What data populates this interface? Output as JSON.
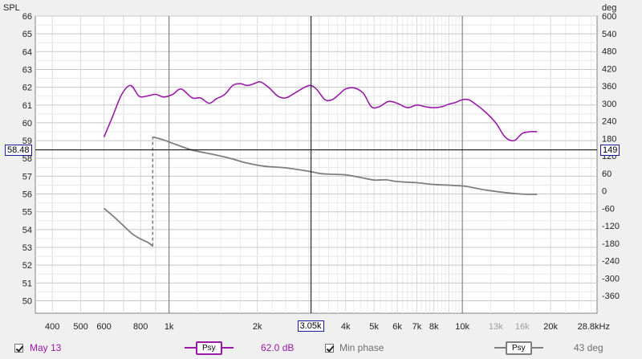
{
  "chart_data": {
    "type": "line",
    "x_scale": "log",
    "xlim_hz": [
      350,
      28800
    ],
    "left_axis": {
      "label": "SPL",
      "ylim": [
        49.3,
        66
      ],
      "ticks": [
        "66",
        "65",
        "64",
        "63",
        "62",
        "61",
        "60",
        "59",
        "58",
        "57",
        "56",
        "55",
        "54",
        "53",
        "52",
        "51",
        "50"
      ]
    },
    "right_axis": {
      "label": "deg",
      "ylim": [
        -420,
        600
      ],
      "ticks": [
        "600",
        "540",
        "480",
        "420",
        "360",
        "300",
        "240",
        "180",
        "120",
        "60",
        "0",
        "-60",
        "-120",
        "-180",
        "-240",
        "-300",
        "-360"
      ]
    },
    "x_ticks": [
      {
        "f": 400,
        "label": "400",
        "color": "#222222"
      },
      {
        "f": 500,
        "label": "500",
        "color": "#222222"
      },
      {
        "f": 600,
        "label": "600",
        "color": "#222222"
      },
      {
        "f": 800,
        "label": "800",
        "color": "#222222"
      },
      {
        "f": 1000,
        "label": "1k",
        "color": "#222222"
      },
      {
        "f": 2000,
        "label": "2k",
        "color": "#222222"
      },
      {
        "f": 4000,
        "label": "4k",
        "color": "#222222"
      },
      {
        "f": 5000,
        "label": "5k",
        "color": "#222222"
      },
      {
        "f": 6000,
        "label": "6k",
        "color": "#222222"
      },
      {
        "f": 7000,
        "label": "7k",
        "color": "#222222"
      },
      {
        "f": 8000,
        "label": "8k",
        "color": "#222222"
      },
      {
        "f": 10000,
        "label": "10k",
        "color": "#222222"
      },
      {
        "f": 13000,
        "label": "13k",
        "color": "#a0a0a0"
      },
      {
        "f": 16000,
        "label": "16k",
        "color": "#a0a0a0"
      },
      {
        "f": 20000,
        "label": "20k",
        "color": "#222222"
      },
      {
        "f": 28800,
        "label": "28.8kHz",
        "color": "#222222"
      }
    ],
    "cursor": {
      "x_hz": 3050,
      "x_label": "3.05k",
      "y_spl": 58.48,
      "y_label": "58.48",
      "y_right_label": "149"
    },
    "series": [
      {
        "name": "May 13",
        "axis": "spl",
        "color": "#9a1aa8",
        "x": [
          600,
          640,
          690,
          740,
          790,
          840,
          900,
          960,
          1030,
          1100,
          1200,
          1280,
          1370,
          1450,
          1550,
          1650,
          1750,
          1850,
          1950,
          2050,
          2200,
          2350,
          2500,
          2700,
          2900,
          3050,
          3200,
          3400,
          3600,
          3800,
          4000,
          4300,
          4600,
          4900,
          5200,
          5600,
          6000,
          6500,
          7000,
          7500,
          8000,
          8500,
          9000,
          9500,
          10000,
          10500,
          11000,
          12000,
          13000,
          14000,
          15000,
          16000,
          17000,
          18000
        ],
        "values": [
          59.2,
          60.3,
          61.6,
          62.1,
          61.5,
          61.5,
          61.6,
          61.45,
          61.6,
          61.9,
          61.4,
          61.4,
          61.1,
          61.35,
          61.6,
          62.1,
          62.2,
          62.1,
          62.2,
          62.3,
          61.95,
          61.5,
          61.4,
          61.7,
          62.0,
          62.1,
          61.85,
          61.3,
          61.3,
          61.6,
          61.9,
          61.95,
          61.65,
          60.9,
          60.9,
          61.2,
          61.1,
          60.85,
          61.0,
          60.9,
          60.85,
          60.9,
          61.05,
          61.15,
          61.3,
          61.3,
          61.1,
          60.6,
          60.0,
          59.2,
          59.0,
          59.4,
          59.5,
          59.5
        ]
      },
      {
        "name": "Min phase",
        "axis": "deg",
        "color": "#7f7f7f",
        "x": [
          600,
          650,
          700,
          750,
          800,
          850,
          880
        ],
        "values": [
          -60,
          -90,
          -120,
          -148,
          -165,
          -178,
          -190
        ]
      },
      {
        "name": "Min phase",
        "axis": "deg",
        "color": "#7f7f7f",
        "x": [
          880,
          950,
          1050,
          1200,
          1400,
          1600,
          1800,
          2100,
          2500,
          3000,
          3300,
          3600,
          4000,
          4500,
          5000,
          5500,
          6000,
          7000,
          8000,
          10000,
          11000,
          12000,
          14000,
          16000,
          18000
        ],
        "values": [
          185,
          176,
          160,
          140,
          126,
          113,
          98,
          85,
          79,
          67,
          59,
          57,
          55,
          46,
          37,
          38,
          32,
          28,
          22,
          17,
          10,
          3,
          -6,
          -11,
          -12
        ]
      }
    ]
  },
  "legend": {
    "series1_name": "May 13",
    "series1_color": "#9a1aa8",
    "series1_button": "Psy",
    "series1_value": "62.0 dB",
    "series2_name": "Min phase",
    "series2_color": "#7f7f7f",
    "series2_button": "Psy",
    "series2_value": "43 deg"
  }
}
